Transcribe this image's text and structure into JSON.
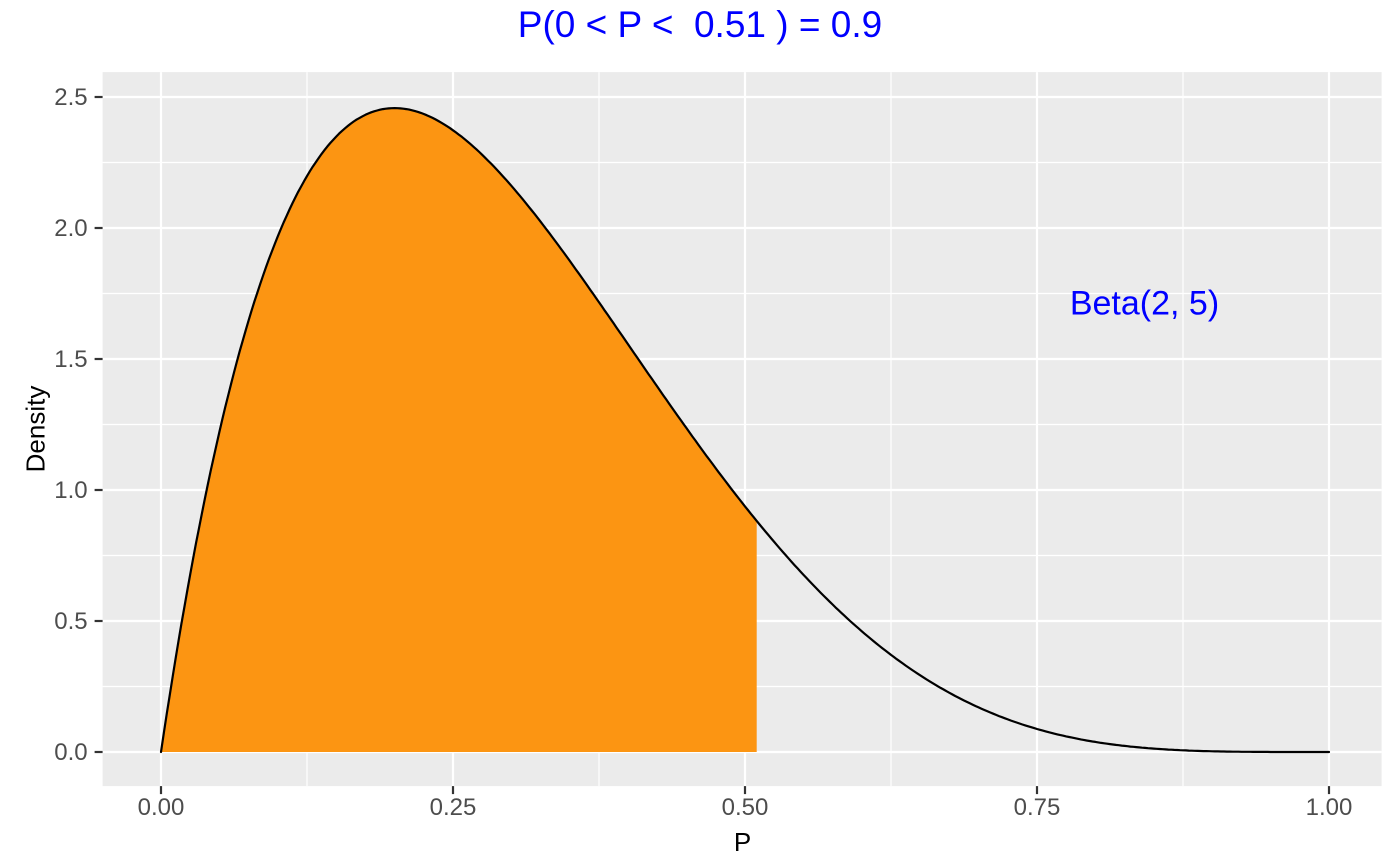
{
  "chart_data": {
    "type": "area",
    "title": "P(0 < P <  0.51 ) = 0.9",
    "xlabel": "P",
    "ylabel": "Density",
    "annotation": {
      "text": "Beta(2, 5)",
      "x": 0.842,
      "y": 1.715
    },
    "distribution": {
      "family": "beta",
      "alpha": 2,
      "beta": 5
    },
    "shaded_region": {
      "from": 0,
      "to": 0.51,
      "probability": 0.9
    },
    "curve_domain": [
      0,
      1
    ],
    "peak": {
      "x": 0.2,
      "y": 2.4576
    },
    "curve_points": {
      "x": [
        0,
        0.05,
        0.1,
        0.15,
        0.2,
        0.25,
        0.3,
        0.35,
        0.4,
        0.45,
        0.5,
        0.51,
        0.55,
        0.6,
        0.65,
        0.7,
        0.75,
        0.8,
        0.85,
        0.9,
        0.95,
        1
      ],
      "density": [
        0,
        1.2218,
        1.9683,
        2.349,
        2.4576,
        2.373,
        2.1609,
        1.8743,
        1.5552,
        1.2353,
        0.9375,
        0.882,
        0.6766,
        0.4608,
        0.2926,
        0.1701,
        0.0879,
        0.0384,
        0.0129,
        0.0027,
        0.0002,
        0
      ]
    },
    "x_axis": {
      "tick_labels": [
        "0.00",
        "0.25",
        "0.50",
        "0.75",
        "1.00"
      ],
      "tick_values": [
        0,
        0.25,
        0.5,
        0.75,
        1
      ],
      "minor_ticks": [
        0.125,
        0.375,
        0.625,
        0.875
      ],
      "limits": [
        -0.05,
        1.045
      ]
    },
    "y_axis": {
      "tick_labels": [
        "0.0",
        "0.5",
        "1.0",
        "1.5",
        "2.0",
        "2.5"
      ],
      "tick_values": [
        0,
        0.5,
        1,
        1.5,
        2,
        2.5
      ],
      "minor_ticks": [
        0.25,
        0.75,
        1.25,
        1.75,
        2.25
      ],
      "limits": [
        -0.13,
        2.595
      ]
    },
    "grid": {
      "major": true,
      "minor": true
    },
    "legend": "none",
    "colors": {
      "area_fill": "#FC9512",
      "curve": "#000000",
      "panel_bg": "#EBEBEB",
      "gridline": "#FFFFFF",
      "title_text": "#0000FF",
      "annotation_text": "#0000FF",
      "tick_label": "#4D4D4D",
      "axis_title": "#000000",
      "tick_mark": "#333333",
      "plot_bg": "#FFFFFF"
    }
  }
}
